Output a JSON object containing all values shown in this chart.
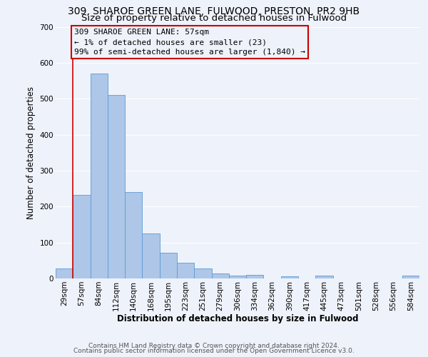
{
  "title": "309, SHAROE GREEN LANE, FULWOOD, PRESTON, PR2 9HB",
  "subtitle": "Size of property relative to detached houses in Fulwood",
  "xlabel": "Distribution of detached houses by size in Fulwood",
  "ylabel": "Number of detached properties",
  "bin_labels": [
    "29sqm",
    "57sqm",
    "84sqm",
    "112sqm",
    "140sqm",
    "168sqm",
    "195sqm",
    "223sqm",
    "251sqm",
    "279sqm",
    "306sqm",
    "334sqm",
    "362sqm",
    "390sqm",
    "417sqm",
    "445sqm",
    "473sqm",
    "501sqm",
    "528sqm",
    "556sqm",
    "584sqm"
  ],
  "bar_values": [
    28,
    232,
    570,
    510,
    240,
    126,
    72,
    44,
    27,
    14,
    8,
    9,
    0,
    6,
    0,
    7,
    0,
    0,
    0,
    0,
    7
  ],
  "bar_color": "#aec6e8",
  "bar_edge_color": "#5b9bd5",
  "annotation_line1": "309 SHAROE GREEN LANE: 57sqm",
  "annotation_line2": "← 1% of detached houses are smaller (23)",
  "annotation_line3": "99% of semi-detached houses are larger (1,840) →",
  "red_line_color": "#cc0000",
  "box_edge_color": "#cc0000",
  "ylim": [
    0,
    700
  ],
  "yticks": [
    0,
    100,
    200,
    300,
    400,
    500,
    600,
    700
  ],
  "footer1": "Contains HM Land Registry data © Crown copyright and database right 2024.",
  "footer2": "Contains public sector information licensed under the Open Government Licence v3.0.",
  "background_color": "#eef2fa",
  "grid_color": "#ffffff",
  "title_fontsize": 10,
  "subtitle_fontsize": 9.5,
  "axis_label_fontsize": 8.5,
  "tick_fontsize": 7.5,
  "annotation_fontsize": 8,
  "footer_fontsize": 6.5
}
